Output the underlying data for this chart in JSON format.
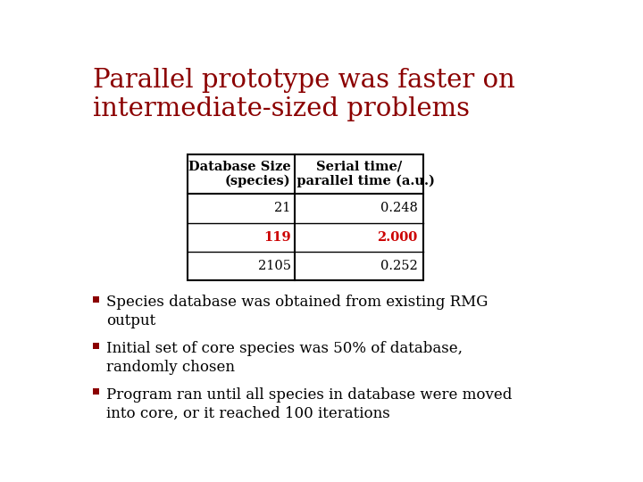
{
  "title_line1": "Parallel prototype was faster on",
  "title_line2": "intermediate-sized problems",
  "title_color": "#8B0000",
  "table_header": [
    "Database Size\n(species)",
    "Serial time/\n   parallel time (a.u.)"
  ],
  "table_rows": [
    [
      "21",
      "0.248",
      false
    ],
    [
      "119",
      "2.000",
      true
    ],
    [
      "2105",
      "0.252",
      false
    ]
  ],
  "highlight_color": "#cc0000",
  "normal_color": "#000000",
  "bullet_color": "#8B0000",
  "bullet_lines": [
    [
      "Species database was obtained from existing RMG",
      "output"
    ],
    [
      "Initial set of core species was 50% of database,",
      "randomly chosen"
    ],
    [
      "Program ran until all species in database were moved",
      "into core, or it reached 100 iterations"
    ]
  ],
  "font_size_title": 21,
  "font_size_table_header": 10.5,
  "font_size_table_body": 10.5,
  "font_size_bullets": 12
}
